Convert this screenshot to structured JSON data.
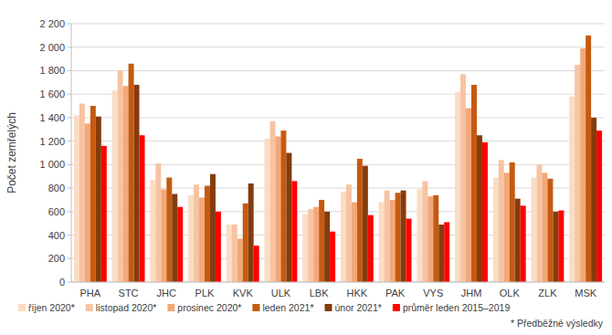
{
  "chart_data": {
    "type": "bar",
    "y_label": "Počet zemřelých",
    "annotation": "* Předběžné výsledky",
    "categories": [
      "PHA",
      "STC",
      "JHC",
      "PLK",
      "KVK",
      "ULK",
      "LBK",
      "HKK",
      "PAK",
      "VYS",
      "JHM",
      "OLK",
      "ZLK",
      "MSK"
    ],
    "series": [
      {
        "name": "říjen 2020*",
        "color": "#fbdcc4",
        "values": [
          1420,
          1630,
          870,
          740,
          490,
          1220,
          580,
          770,
          680,
          790,
          1620,
          890,
          890,
          1580
        ]
      },
      {
        "name": "listopad 2020*",
        "color": "#f7c3a2",
        "values": [
          1520,
          1800,
          1010,
          830,
          490,
          1370,
          620,
          830,
          780,
          860,
          1770,
          1040,
          1000,
          1850
        ]
      },
      {
        "name": "prosinec 2020*",
        "color": "#f2a878",
        "values": [
          1350,
          1670,
          790,
          720,
          370,
          1240,
          640,
          680,
          700,
          730,
          1480,
          930,
          930,
          1990
        ]
      },
      {
        "name": "leden 2021*",
        "color": "#c55a11",
        "values": [
          1500,
          1860,
          890,
          820,
          670,
          1290,
          700,
          1050,
          760,
          740,
          1680,
          1020,
          880,
          2100
        ]
      },
      {
        "name": "únor  2021*",
        "color": "#843c0c",
        "values": [
          1410,
          1680,
          750,
          920,
          840,
          1100,
          600,
          990,
          780,
          490,
          1250,
          710,
          600,
          1400
        ]
      },
      {
        "name": "průměr leden 2015–2019",
        "color": "#ff0000",
        "values": [
          1160,
          1250,
          640,
          600,
          310,
          860,
          430,
          570,
          540,
          510,
          1190,
          650,
          610,
          1290
        ]
      }
    ],
    "ylim": [
      0,
      2200
    ],
    "yticks": [
      0,
      200,
      400,
      600,
      800,
      {
        "value": 1000,
        "label": "1 000"
      },
      {
        "value": 1200,
        "label": "1 200"
      },
      {
        "value": 1400,
        "label": "1 400"
      },
      {
        "value": 1600,
        "label": "1 600"
      },
      {
        "value": 1800,
        "label": "1 800"
      },
      {
        "value": 2000,
        "label": "2 000"
      },
      {
        "value": 2200,
        "label": "2 200"
      }
    ],
    "grid": true,
    "legend": "bottom"
  }
}
